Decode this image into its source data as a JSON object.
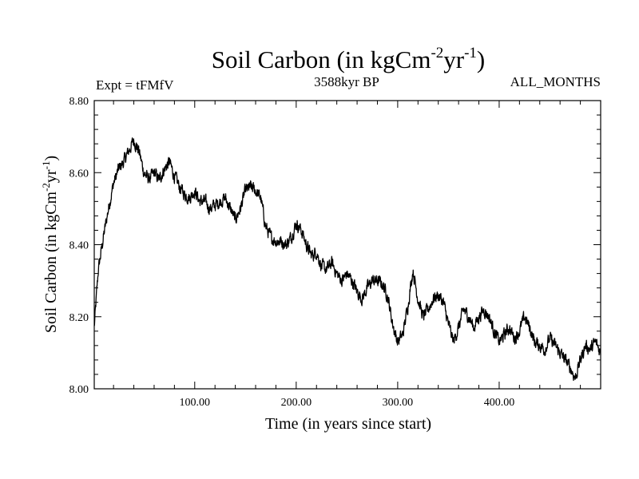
{
  "chart_data": {
    "type": "line",
    "title": "Soil Carbon (in kgCm",
    "title_sup1": "-2",
    "title_mid": "yr",
    "title_sup2": "-1",
    "title_end": ")",
    "subtitle_left": "Expt = tFMfV",
    "subtitle_center": "3588kyr BP",
    "subtitle_right": "ALL_MONTHS",
    "xlabel": "Time (in years since start)",
    "ylabel": "Soil Carbon (in kgCm",
    "ylabel_sup1": "-2",
    "ylabel_mid": "yr",
    "ylabel_sup2": "-1",
    "ylabel_end": ")",
    "xlim": [
      1,
      500
    ],
    "ylim": [
      8.0,
      8.8
    ],
    "x_ticks": [
      100,
      200,
      300,
      400
    ],
    "x_tick_labels": [
      "100.00",
      "200.00",
      "300.00",
      "400.00"
    ],
    "y_ticks": [
      8.0,
      8.2,
      8.4,
      8.6,
      8.8
    ],
    "y_tick_labels": [
      "8.00",
      "8.20",
      "8.40",
      "8.60",
      "8.80"
    ],
    "series": [
      {
        "name": "Soil Carbon",
        "x": [
          1,
          5,
          10,
          15,
          20,
          25,
          30,
          35,
          40,
          45,
          50,
          55,
          60,
          65,
          70,
          75,
          80,
          85,
          90,
          95,
          100,
          105,
          110,
          115,
          120,
          125,
          130,
          135,
          140,
          145,
          150,
          155,
          160,
          165,
          170,
          175,
          180,
          185,
          190,
          195,
          200,
          205,
          210,
          215,
          220,
          225,
          230,
          235,
          240,
          245,
          250,
          255,
          260,
          265,
          270,
          275,
          280,
          285,
          290,
          295,
          300,
          305,
          310,
          315,
          320,
          325,
          330,
          335,
          340,
          345,
          350,
          355,
          360,
          365,
          370,
          375,
          380,
          385,
          390,
          395,
          400,
          405,
          410,
          415,
          420,
          425,
          430,
          435,
          440,
          445,
          450,
          455,
          460,
          465,
          470,
          475,
          480,
          485,
          490,
          495,
          500
        ],
        "values": [
          8.17,
          8.33,
          8.42,
          8.5,
          8.57,
          8.61,
          8.63,
          8.66,
          8.69,
          8.66,
          8.6,
          8.58,
          8.6,
          8.58,
          8.61,
          8.63,
          8.59,
          8.56,
          8.54,
          8.53,
          8.55,
          8.52,
          8.52,
          8.5,
          8.51,
          8.52,
          8.53,
          8.5,
          8.47,
          8.5,
          8.55,
          8.56,
          8.55,
          8.53,
          8.45,
          8.42,
          8.41,
          8.41,
          8.4,
          8.42,
          8.46,
          8.44,
          8.4,
          8.37,
          8.38,
          8.34,
          8.33,
          8.35,
          8.32,
          8.3,
          8.32,
          8.3,
          8.27,
          8.25,
          8.28,
          8.3,
          8.3,
          8.29,
          8.26,
          8.18,
          8.13,
          8.15,
          8.23,
          8.33,
          8.25,
          8.2,
          8.22,
          8.25,
          8.26,
          8.24,
          8.18,
          8.13,
          8.17,
          8.22,
          8.2,
          8.17,
          8.2,
          8.22,
          8.2,
          8.16,
          8.13,
          8.15,
          8.17,
          8.14,
          8.16,
          8.2,
          8.17,
          8.13,
          8.12,
          8.11,
          8.14,
          8.12,
          8.1,
          8.08,
          8.06,
          8.03,
          8.08,
          8.12,
          8.11,
          8.13,
          8.1
        ]
      }
    ]
  }
}
